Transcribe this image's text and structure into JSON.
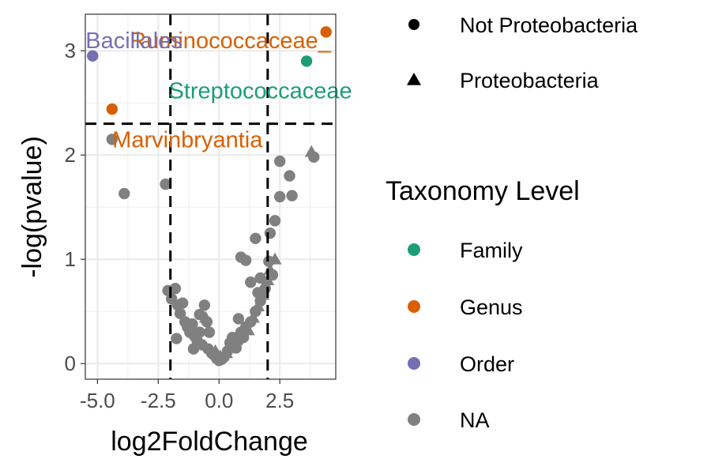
{
  "chart_data": {
    "type": "scatter",
    "title": "",
    "xlabel": "log2FoldChange",
    "ylabel": "-log(pvalue)",
    "xlim": [
      -5.5,
      4.8
    ],
    "ylim": [
      -0.15,
      3.35
    ],
    "x_ticks": [
      -5,
      -2.5,
      0,
      2.5
    ],
    "x_tick_labels": [
      "-5.0",
      "-2.5",
      "0.0",
      "2.5"
    ],
    "y_ticks": [
      0,
      1,
      2,
      3
    ],
    "y_tick_labels": [
      "0",
      "1",
      "2",
      "3"
    ],
    "grid": true,
    "vlines": [
      -2,
      2
    ],
    "hlines": [
      2.3
    ],
    "shape_legend": {
      "items": [
        {
          "label": "Not Proteobacteria",
          "shape": "circle"
        },
        {
          "label": "Proteobacteria",
          "shape": "triangle"
        }
      ]
    },
    "color_legend": {
      "title": "Taxonomy Level",
      "items": [
        {
          "label": "Family",
          "color": "#1b9e77"
        },
        {
          "label": "Genus",
          "color": "#d95f02"
        },
        {
          "label": "Order",
          "color": "#7570b3"
        },
        {
          "label": "NA",
          "color": "#808080"
        }
      ]
    },
    "labeled_points": [
      {
        "x": 4.4,
        "y": 3.18,
        "level": "Genus",
        "shape": "circle"
      },
      {
        "x": 3.6,
        "y": 2.9,
        "level": "Family",
        "shape": "circle"
      },
      {
        "x": -5.2,
        "y": 2.95,
        "level": "Order",
        "shape": "circle"
      },
      {
        "x": -4.4,
        "y": 2.44,
        "level": "Genus",
        "shape": "circle"
      }
    ],
    "annotations": [
      {
        "text": "Ruminococcaceae_",
        "x": 4.6,
        "y": 3.1,
        "anchor": "end",
        "color": "#d95f02"
      },
      {
        "text": "Bacillales",
        "x": -3.5,
        "y": 3.1,
        "anchor": "middle",
        "color": "#7570b3"
      },
      {
        "text": "Streptococcaceae",
        "x": 1.7,
        "y": 2.62,
        "anchor": "middle",
        "color": "#1b9e77"
      },
      {
        "text": "Marvinbryantia",
        "x": -1.3,
        "y": 2.15,
        "anchor": "middle",
        "color": "#d95f02"
      }
    ],
    "na_points": [
      {
        "x": -4.4,
        "y": 2.15,
        "shape": "circle"
      },
      {
        "x": -3.9,
        "y": 1.63,
        "shape": "circle"
      },
      {
        "x": -2.2,
        "y": 1.72,
        "shape": "circle"
      },
      {
        "x": -2.1,
        "y": 0.7,
        "shape": "circle"
      },
      {
        "x": -1.95,
        "y": 0.62,
        "shape": "circle"
      },
      {
        "x": -1.8,
        "y": 0.72,
        "shape": "circle"
      },
      {
        "x": -1.7,
        "y": 0.56,
        "shape": "circle"
      },
      {
        "x": -1.6,
        "y": 0.48,
        "shape": "circle"
      },
      {
        "x": -1.5,
        "y": 0.58,
        "shape": "circle"
      },
      {
        "x": -1.4,
        "y": 0.4,
        "shape": "circle"
      },
      {
        "x": -1.3,
        "y": 0.35,
        "shape": "circle"
      },
      {
        "x": -1.2,
        "y": 0.3,
        "shape": "circle"
      },
      {
        "x": -1.1,
        "y": 0.38,
        "shape": "circle"
      },
      {
        "x": -1.0,
        "y": 0.26,
        "shape": "circle"
      },
      {
        "x": -0.9,
        "y": 0.22,
        "shape": "circle"
      },
      {
        "x": -0.8,
        "y": 0.3,
        "shape": "circle"
      },
      {
        "x": -0.7,
        "y": 0.18,
        "shape": "circle"
      },
      {
        "x": -0.6,
        "y": 0.56,
        "shape": "circle"
      },
      {
        "x": -0.55,
        "y": 0.44,
        "shape": "triangle"
      },
      {
        "x": -0.5,
        "y": 0.4,
        "shape": "circle"
      },
      {
        "x": -0.45,
        "y": 0.14,
        "shape": "circle"
      },
      {
        "x": -0.4,
        "y": 0.3,
        "shape": "circle"
      },
      {
        "x": -0.3,
        "y": 0.1,
        "shape": "circle"
      },
      {
        "x": -0.2,
        "y": 0.08,
        "shape": "circle"
      },
      {
        "x": -0.15,
        "y": 0.12,
        "shape": "triangle"
      },
      {
        "x": -0.1,
        "y": 0.05,
        "shape": "circle"
      },
      {
        "x": 0.0,
        "y": 0.03,
        "shape": "circle"
      },
      {
        "x": 0.05,
        "y": 0.07,
        "shape": "triangle"
      },
      {
        "x": 0.1,
        "y": 0.04,
        "shape": "circle"
      },
      {
        "x": 0.2,
        "y": 0.06,
        "shape": "circle"
      },
      {
        "x": 0.3,
        "y": 0.1,
        "shape": "triangle"
      },
      {
        "x": 0.35,
        "y": 0.12,
        "shape": "circle"
      },
      {
        "x": 0.45,
        "y": 0.2,
        "shape": "circle"
      },
      {
        "x": 0.55,
        "y": 0.25,
        "shape": "circle"
      },
      {
        "x": 0.6,
        "y": 0.18,
        "shape": "triangle"
      },
      {
        "x": 0.7,
        "y": 0.15,
        "shape": "circle"
      },
      {
        "x": 0.8,
        "y": 0.22,
        "shape": "circle"
      },
      {
        "x": 0.9,
        "y": 0.3,
        "shape": "circle"
      },
      {
        "x": 1.0,
        "y": 0.25,
        "shape": "circle"
      },
      {
        "x": 1.1,
        "y": 0.35,
        "shape": "circle"
      },
      {
        "x": 1.2,
        "y": 0.32,
        "shape": "triangle"
      },
      {
        "x": 1.3,
        "y": 0.4,
        "shape": "circle"
      },
      {
        "x": 1.4,
        "y": 0.44,
        "shape": "triangle"
      },
      {
        "x": 1.5,
        "y": 0.5,
        "shape": "circle"
      },
      {
        "x": 1.6,
        "y": 0.55,
        "shape": "triangle"
      },
      {
        "x": 1.7,
        "y": 0.6,
        "shape": "circle"
      },
      {
        "x": 1.8,
        "y": 0.66,
        "shape": "triangle"
      },
      {
        "x": 1.9,
        "y": 0.72,
        "shape": "circle"
      },
      {
        "x": 2.0,
        "y": 0.8,
        "shape": "triangle"
      },
      {
        "x": 2.1,
        "y": 0.9,
        "shape": "triangle"
      },
      {
        "x": 2.2,
        "y": 0.85,
        "shape": "circle"
      },
      {
        "x": 2.3,
        "y": 1.0,
        "shape": "triangle"
      },
      {
        "x": 1.6,
        "y": 0.68,
        "shape": "circle"
      },
      {
        "x": 1.5,
        "y": 1.2,
        "shape": "circle"
      },
      {
        "x": 1.3,
        "y": 0.78,
        "shape": "circle"
      },
      {
        "x": 1.1,
        "y": 0.99,
        "shape": "circle"
      },
      {
        "x": 0.9,
        "y": 1.02,
        "shape": "circle"
      },
      {
        "x": 1.7,
        "y": 0.82,
        "shape": "circle"
      },
      {
        "x": 2.1,
        "y": 1.25,
        "shape": "circle"
      },
      {
        "x": 2.3,
        "y": 1.37,
        "shape": "circle"
      },
      {
        "x": 2.5,
        "y": 1.6,
        "shape": "circle"
      },
      {
        "x": 2.5,
        "y": 1.94,
        "shape": "circle"
      },
      {
        "x": 2.9,
        "y": 1.8,
        "shape": "circle"
      },
      {
        "x": 3.0,
        "y": 1.61,
        "shape": "circle"
      },
      {
        "x": 3.8,
        "y": 2.03,
        "shape": "triangle"
      },
      {
        "x": 3.9,
        "y": 1.98,
        "shape": "circle"
      },
      {
        "x": -0.8,
        "y": 0.47,
        "shape": "circle"
      },
      {
        "x": 0.8,
        "y": 0.43,
        "shape": "circle"
      },
      {
        "x": -1.75,
        "y": 0.24,
        "shape": "circle"
      },
      {
        "x": -1.05,
        "y": 0.14,
        "shape": "circle"
      },
      {
        "x": 2.05,
        "y": 0.98,
        "shape": "circle"
      }
    ]
  }
}
